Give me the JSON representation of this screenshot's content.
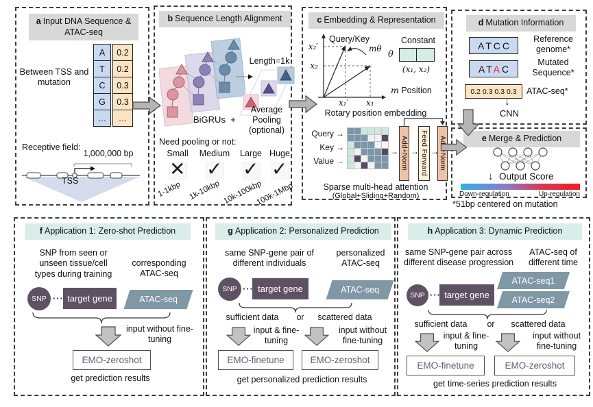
{
  "colors": {
    "purple": "#5e5163",
    "slate": "#8097a6",
    "mint": "#d9eee9",
    "gray_header": "#d8d8d8",
    "seq_blue": "#c9daf0",
    "seq_orange": "#fbe4c4",
    "salmon": "#efc2a8",
    "cream": "#fdf0d8",
    "teal_box": "#d6ece6",
    "emo_text": "#6b5b73",
    "mut_red": "#e8231e",
    "matrix": {
      "s": "#7b96a8",
      "t": "#cfe7de",
      "w": "#f2f2f2",
      "d": "#564a63"
    },
    "gradient": [
      "#2fafe8",
      "#8c7cc4",
      "#d6384f",
      "#ee1c25"
    ]
  },
  "panels": {
    "a": {
      "prefix": "a",
      "title": "Input DNA Sequence & ATAC-seq",
      "between": "Between TSS and mutation",
      "letters": [
        "A",
        "T",
        "C",
        "G",
        "…"
      ],
      "values": [
        "0.2",
        "0.2",
        "0.3",
        "0.3",
        "…"
      ],
      "receptive": "Receptive field:",
      "bp": "1,000,000 bp",
      "tss": "TSS"
    },
    "b": {
      "prefix": "b",
      "title": "Sequence Length Alignment",
      "length": "Length=1k",
      "bigrus": "BiGRUs",
      "plus": "+",
      "pooling": "Average Pooling",
      "optional": "(optional)",
      "need": "Need pooling or not:",
      "sizes": [
        {
          "label": "Small",
          "mark": "✕",
          "range": "1-1kbp"
        },
        {
          "label": "Medium",
          "mark": "✓",
          "range": "1k-10kbp"
        },
        {
          "label": "Large",
          "mark": "✓",
          "range": "10k-100kbp"
        },
        {
          "label": "Huge",
          "mark": "✓",
          "range": "100k-1Mbp"
        }
      ]
    },
    "c": {
      "prefix": "c",
      "title": "Embedding & Representation",
      "query_key": "Query/Key",
      "m_theta": "mθ",
      "x2p": "x₂′",
      "x2": "x₂",
      "x1p": "x₁′",
      "x1": "x₁",
      "constant": "Constant",
      "theta": "θ",
      "coords": "(x₁, x₂)",
      "m": "m",
      "position": "Position",
      "rotary": "Rotary position embedding",
      "q": "Query",
      "k": "Key",
      "v": "Value",
      "arrow": "→",
      "blocks": [
        "Add+Norm",
        "Feed Forward",
        "Add+Norm"
      ],
      "attn": "Sparse multi-head attention",
      "attn_sub": "(Global+Sliding+Random)",
      "matrix": [
        "sstttt",
        "ssswwd",
        "tsssww",
        "twsssd",
        "tdwsss",
        "twdwss"
      ]
    },
    "d": {
      "prefix": "d",
      "title": "Mutation Information",
      "ref_seq": "ATCC",
      "ref_label": "Reference genome*",
      "mut_pre": "AT",
      "mut_red": "A",
      "mut_post": "C",
      "mut_label": "Mutated Sequence*",
      "atac_vals": "0.2 0.3 0.3 0.3",
      "atac_label": "ATAC-seq*",
      "down_arrow": "↓",
      "cnn": "CNN"
    },
    "e": {
      "prefix": "e",
      "title": "Merge & Prediction",
      "down_arrow": "↓",
      "output": "Output Score",
      "down": "Down-regulation",
      "up": "Up-regulation",
      "note": "*51bp centered on mutation"
    },
    "f": {
      "prefix": "f",
      "title": "Application 1: Zero-shot Prediction",
      "left_desc": "SNP from seen or unseen tissue/cell types during training",
      "right_desc": "corresponding ATAC-seq",
      "snp": "SNP",
      "dots": "···",
      "gene": "target gene",
      "atac": "ATAC-seq",
      "arrow_label": "input without fine-tuning",
      "model": "EMO-zeroshot",
      "result": "get prediction results"
    },
    "g": {
      "prefix": "g",
      "title": "Application 2: Personalized Prediction",
      "left_desc": "same SNP-gene pair of different individuals",
      "right_desc": "personalized ATAC-seq",
      "snp": "SNP",
      "dots": "···",
      "gene": "target gene",
      "atac": "ATAC-seq",
      "cond_left": "sufficient data",
      "or": "or",
      "cond_right": "scattered data",
      "arrow_left_label": "input & fine-tuning",
      "arrow_right_label": "input without fine-tuning",
      "model_left": "EMO-finetune",
      "model_right": "EMO-zeroshot",
      "result": "get personalized prediction results"
    },
    "h": {
      "prefix": "h",
      "title": "Application 3: Dynamic Prediction",
      "left_desc": "same SNP-gene pair across different disease progression",
      "right_desc": "ATAC-seq of different time",
      "snp": "SNP",
      "dots": "···",
      "gene": "target gene",
      "atac1": "ATAC-seq1",
      "atac2": "ATAC-seq2",
      "cond_left": "sufficient data",
      "or": "or",
      "cond_right": "scattered data",
      "arrow_left_label": "input & fine-tuning",
      "arrow_right_label": "input without fine-tuning",
      "model_left": "EMO-finetune",
      "model_right": "EMO-zeroshot",
      "result": "get time-series prediction results"
    }
  }
}
